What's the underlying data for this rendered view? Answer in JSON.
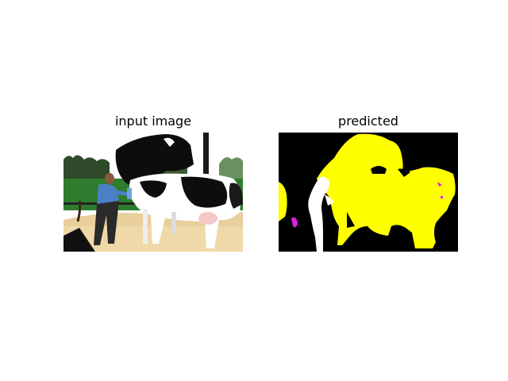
{
  "panels": {
    "left": {
      "title": "input image"
    },
    "right": {
      "title": "predicted"
    }
  },
  "colors": {
    "background": "#ffffff",
    "seg_background": "#000000",
    "seg_cow": "#ffff00",
    "seg_person": "#ffffff",
    "seg_other": "#e020e0"
  }
}
